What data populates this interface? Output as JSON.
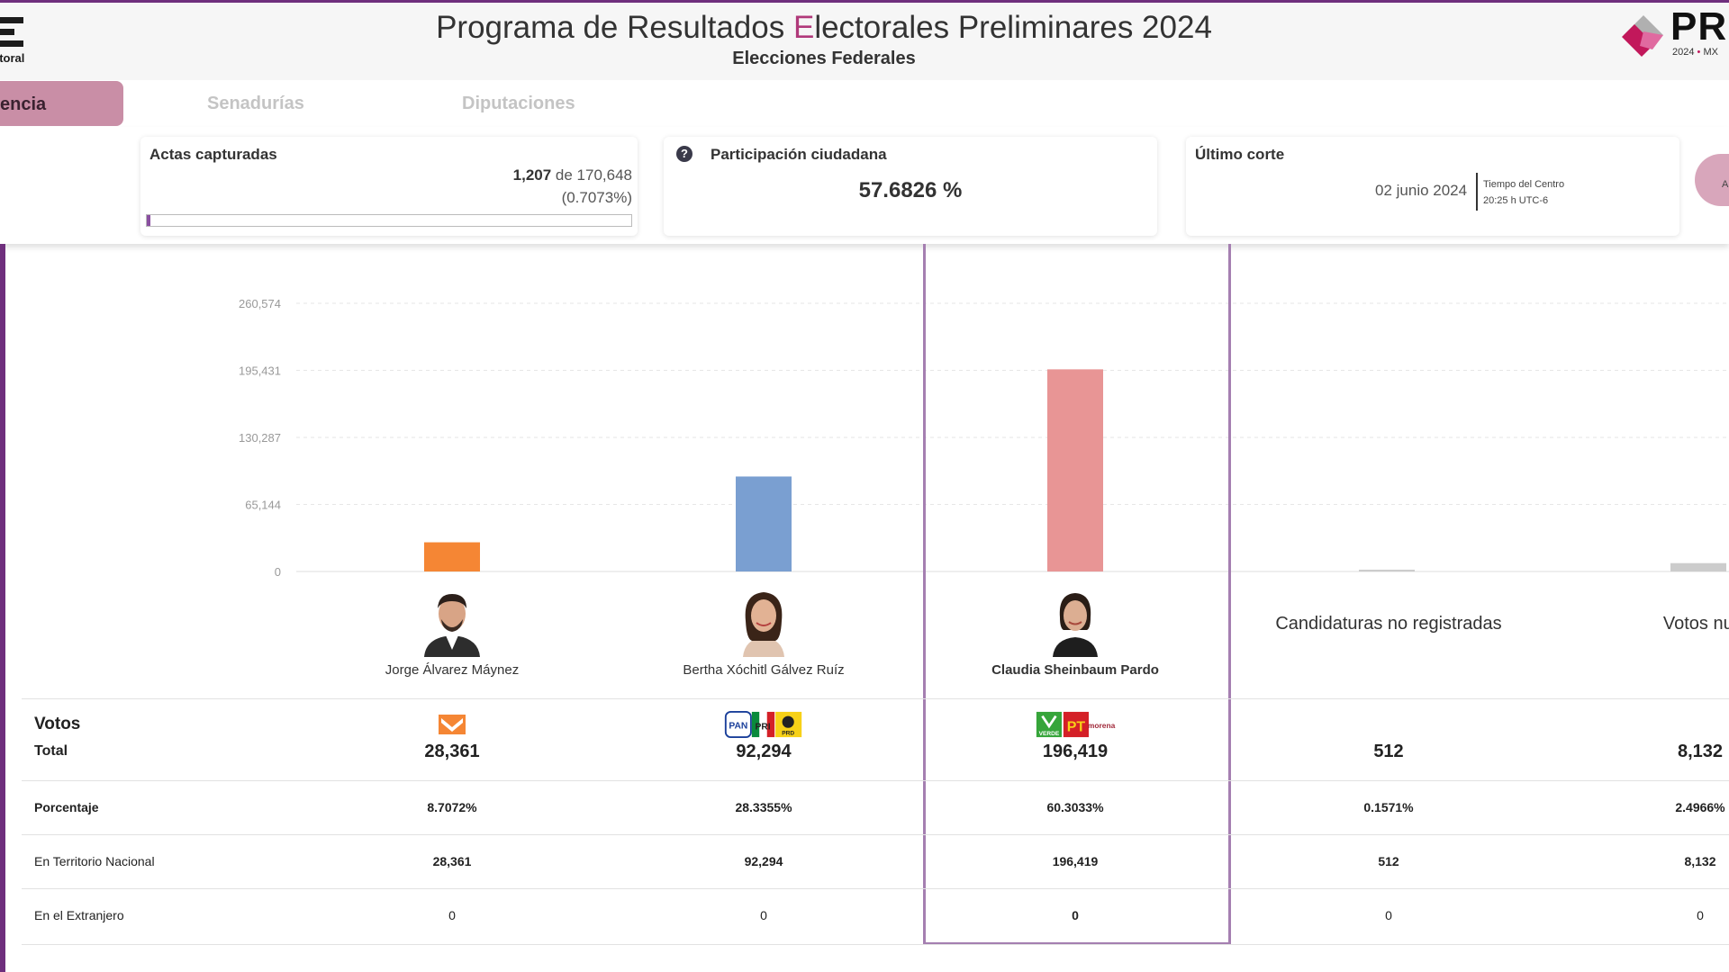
{
  "header": {
    "title_pre": "Programa de Resultados ",
    "title_accent": "E",
    "title_post": "lectorales Preliminares 2024",
    "subtitle": "Elecciones Federales",
    "ine_sub": "ctoral",
    "prep_text": "PR",
    "prep_year": "2024",
    "prep_country": "MX"
  },
  "tabs": [
    {
      "label": "encia",
      "active": true
    },
    {
      "label": "Senadurías",
      "active": false
    },
    {
      "label": "Diputaciones",
      "active": false
    }
  ],
  "summary": {
    "actas_label": "Actas capturadas",
    "actas_count": "1,207",
    "actas_de": " de ",
    "actas_total": "170,648",
    "actas_pct": "(0.7073%)",
    "actas_progress": 0.007073,
    "participacion_label": "Participación ciudadana",
    "participacion_value": "57.6826 %",
    "corte_label": "Último corte",
    "corte_date": "02 junio 2024",
    "corte_tz1": "Tiempo del Centro",
    "corte_tz2": "20:25 h UTC-6",
    "update_btn_letter": "A"
  },
  "colors": {
    "purple": "#6f2f7d",
    "orange": "#f58634",
    "blue": "#7a9fd1",
    "pink": "#e89595",
    "gray": "#cccccc"
  },
  "chart_data": {
    "type": "bar",
    "yticks": [
      "260,574",
      "195,431",
      "130,287",
      "65,144",
      "0"
    ],
    "ylim": [
      0,
      260574
    ],
    "categories": [
      "Jorge Álvarez Máynez",
      "Bertha Xóchitl Gálvez Ruíz",
      "Claudia Sheinbaum Pardo",
      "Candidaturas no registradas",
      "Votos nulos"
    ],
    "values": [
      28361,
      92294,
      196419,
      512,
      8132
    ],
    "colors": [
      "#f58634",
      "#7a9fd1",
      "#e89595",
      "#cccccc",
      "#cccccc"
    ]
  },
  "candidates": [
    {
      "name": "Jorge Álvarez Máynez"
    },
    {
      "name": "Bertha Xóchitl Gálvez Ruíz"
    },
    {
      "name": "Claudia Sheinbaum Pardo"
    },
    {
      "name": "Candidaturas no registradas"
    },
    {
      "name": "Votos nul"
    }
  ],
  "parties": {
    "pan": "PAN",
    "pri": "PRI",
    "prd": "PRD",
    "verde": "VERDE",
    "pt": "PT",
    "morena": "morena"
  },
  "table": {
    "votos_title": "Votos",
    "total_label": "Total",
    "porcentaje_label": "Porcentaje",
    "territorio_label": "En Territorio Nacional",
    "extranjero_label": "En el Extranjero",
    "totals": [
      "28,361",
      "92,294",
      "196,419",
      "512",
      "8,132"
    ],
    "porcentajes": [
      "8.7072%",
      "28.3355%",
      "60.3033%",
      "0.1571%",
      "2.4966%"
    ],
    "territorio": [
      "28,361",
      "92,294",
      "196,419",
      "512",
      "8,132"
    ],
    "extranjero": [
      "0",
      "0",
      "0",
      "0",
      "0"
    ]
  }
}
